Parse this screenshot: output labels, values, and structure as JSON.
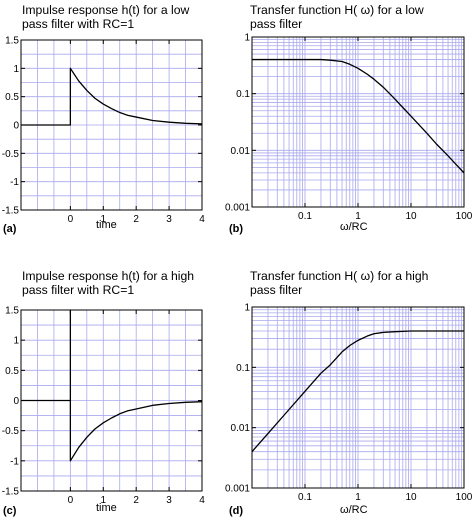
{
  "chart_data": [
    {
      "id": "a",
      "type": "line",
      "panel_label": "(a)",
      "title": [
        "Impulse response h(t) for a low",
        "pass filter with RC=1"
      ],
      "xlabel": "time",
      "ylabel": "",
      "xlim": [
        -1.5,
        4
      ],
      "ylim": [
        -1.5,
        1.5
      ],
      "xscale": "linear",
      "yscale": "linear",
      "x_ticks": [
        0,
        1,
        2,
        3,
        4
      ],
      "x_tick_labels": [
        "0",
        "1",
        "2",
        "3",
        "4"
      ],
      "y_ticks": [
        -1.5,
        -1,
        -0.5,
        0,
        0.5,
        1,
        1.5
      ],
      "y_tick_labels": [
        "-1.5",
        "-1",
        "-0.5",
        "0",
        "0.5",
        "1",
        "1.5"
      ],
      "grid": true,
      "series": [
        {
          "x": [
            -1.5,
            0,
            0,
            0.25,
            0.5,
            0.75,
            1,
            1.25,
            1.5,
            1.75,
            2,
            2.5,
            3,
            3.5,
            4
          ],
          "y": [
            0,
            0,
            1,
            0.78,
            0.61,
            0.47,
            0.37,
            0.29,
            0.22,
            0.17,
            0.14,
            0.08,
            0.05,
            0.03,
            0.02
          ]
        }
      ]
    },
    {
      "id": "b",
      "type": "line",
      "panel_label": "(b)",
      "title": [
        "Transfer function H( ω) for a low",
        "pass filter"
      ],
      "xlabel": "ω/RC",
      "ylabel": "",
      "xlim": [
        0.01,
        100
      ],
      "ylim": [
        0.001,
        1
      ],
      "xscale": "log",
      "yscale": "log",
      "x_ticks": [
        0.1,
        1,
        10,
        100
      ],
      "x_tick_labels": [
        "0.1",
        "1",
        "10",
        "100"
      ],
      "y_ticks": [
        0.001,
        0.01,
        0.1,
        1
      ],
      "y_tick_labels": [
        "0.001",
        "0.01",
        "0.1",
        "1"
      ],
      "grid": true,
      "series": [
        {
          "x": [
            0.01,
            0.03,
            0.1,
            0.2,
            0.3,
            0.5,
            0.7,
            1,
            1.5,
            2,
            3,
            5,
            7,
            10,
            20,
            30,
            50,
            70,
            100
          ],
          "y": [
            0.4,
            0.4,
            0.4,
            0.4,
            0.39,
            0.37,
            0.33,
            0.28,
            0.22,
            0.18,
            0.13,
            0.08,
            0.057,
            0.04,
            0.02,
            0.013,
            0.008,
            0.0057,
            0.004
          ]
        }
      ]
    },
    {
      "id": "c",
      "type": "line",
      "panel_label": "(c)",
      "title": [
        "Impulse response h(t) for a high",
        "pass filter with RC=1"
      ],
      "xlabel": "time",
      "ylabel": "",
      "xlim": [
        -1.5,
        4
      ],
      "ylim": [
        -1.5,
        1.5
      ],
      "xscale": "linear",
      "yscale": "linear",
      "x_ticks": [
        0,
        1,
        2,
        3,
        4
      ],
      "x_tick_labels": [
        "0",
        "1",
        "2",
        "3",
        "4"
      ],
      "y_ticks": [
        -1.5,
        -1,
        -0.5,
        0,
        0.5,
        1,
        1.5
      ],
      "y_tick_labels": [
        "-1.5",
        "-1",
        "-0.5",
        "0",
        "0.5",
        "1",
        "1.5"
      ],
      "grid": true,
      "series": [
        {
          "x": [
            -1.5,
            0,
            0,
            0,
            0.25,
            0.5,
            0.75,
            1,
            1.25,
            1.5,
            1.75,
            2,
            2.5,
            3,
            3.5,
            4
          ],
          "y": [
            0,
            0,
            1.5,
            -1,
            -0.78,
            -0.61,
            -0.47,
            -0.37,
            -0.29,
            -0.22,
            -0.17,
            -0.14,
            -0.08,
            -0.05,
            -0.03,
            -0.02
          ]
        }
      ]
    },
    {
      "id": "d",
      "type": "line",
      "panel_label": "(d)",
      "title": [
        "Transfer function H( ω) for a high",
        "pass filter"
      ],
      "xlabel": "ω/RC",
      "ylabel": "",
      "xlim": [
        0.01,
        100
      ],
      "ylim": [
        0.001,
        1
      ],
      "xscale": "log",
      "yscale": "log",
      "x_ticks": [
        0.1,
        1,
        10,
        100
      ],
      "x_tick_labels": [
        "0.1",
        "1",
        "10",
        "100"
      ],
      "y_ticks": [
        0.001,
        0.01,
        0.1,
        1
      ],
      "y_tick_labels": [
        "0.001",
        "0.01",
        "0.1",
        "1"
      ],
      "grid": true,
      "series": [
        {
          "x": [
            0.01,
            0.02,
            0.05,
            0.1,
            0.2,
            0.3,
            0.5,
            0.7,
            1,
            1.5,
            2,
            3,
            5,
            10,
            20,
            50,
            100
          ],
          "y": [
            0.004,
            0.008,
            0.02,
            0.04,
            0.08,
            0.11,
            0.18,
            0.23,
            0.28,
            0.33,
            0.36,
            0.38,
            0.39,
            0.4,
            0.4,
            0.4,
            0.4
          ]
        }
      ]
    }
  ],
  "colors": {
    "grid_minor": "#a9a9ee",
    "grid_major": "#8080dd",
    "curve": "#000000",
    "frame": "#000000"
  }
}
